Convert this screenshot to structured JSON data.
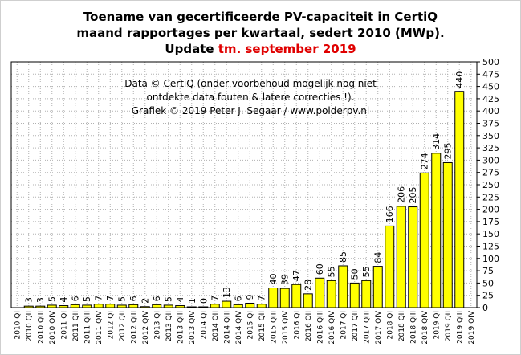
{
  "title": {
    "line1": "Toename van gecertificeerde PV-capaciteit  in CertiQ",
    "line2": "maand rapportages per kwartaal, sedert 2010 (MWp).",
    "line3_prefix": "Update ",
    "line3_highlight": "tm. september 2019"
  },
  "annotation": {
    "line1": "Data © CertiQ (onder voorbehoud mogelijk  nog niet",
    "line2": "ontdekte data fouten & latere correcties !).",
    "line3": "Grafiek  © 2019 Peter J. Segaar / www.polderpv.nl"
  },
  "colors": {
    "bar_fill": "#ffff00",
    "bar_stroke": "#000000",
    "grid": "#b0b0b0",
    "highlight": "#e00000"
  },
  "chart_data": {
    "type": "bar",
    "categories": [
      "2010 QI",
      "2010 QII",
      "2010 QIII",
      "2010 QIV",
      "2011 QI",
      "2011 QII",
      "2011 QIII",
      "2011 QIV",
      "2012 QI",
      "2012 QII",
      "2012 QIII",
      "2012 QIV",
      "2013 QI",
      "2013 QII",
      "2013 QIII",
      "2013 QIV",
      "2014 QI",
      "2014 QII",
      "2014 QIII",
      "2014 QIV",
      "2015 QI",
      "2015 QII",
      "2015 QIII",
      "2015 QIV",
      "2016 QI",
      "2016 QII",
      "2016 QIII",
      "2016 QIV",
      "2017 QI",
      "2017 QII",
      "2017 QIII",
      "2017 QIV",
      "2018 QI",
      "2018 QII",
      "2018 QIII",
      "2018 QIV",
      "2019 QI",
      "2019 QII",
      "2019 QIII",
      "2019 QIV"
    ],
    "values": [
      null,
      3,
      3,
      5,
      4,
      6,
      5,
      7,
      7,
      5,
      6,
      2,
      6,
      5,
      4,
      1,
      0,
      7,
      13,
      6,
      9,
      7,
      40,
      39,
      47,
      28,
      60,
      55,
      85,
      50,
      55,
      84,
      166,
      206,
      205,
      274,
      314,
      295,
      440,
      null
    ],
    "ylim": [
      0,
      500
    ],
    "ytick_step": 25,
    "grid": true,
    "y_axis_side": "right"
  }
}
